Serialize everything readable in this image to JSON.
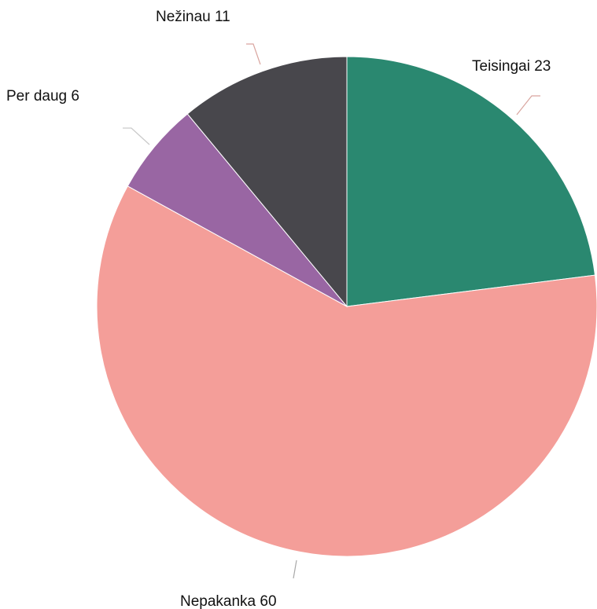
{
  "chart_data": {
    "type": "pie",
    "title": "",
    "start_angle_deg": 0,
    "direction": "clockwise",
    "legend": "none",
    "slices": [
      {
        "label": "Teisingai",
        "value": 23,
        "display": "Teisingai 23",
        "color": "#2a8870",
        "leader_color": "#d9a59f"
      },
      {
        "label": "Nepakanka",
        "value": 60,
        "display": "Nepakanka 60",
        "color": "#f49e99",
        "leader_color": "#a8a8a8"
      },
      {
        "label": "Per daug",
        "value": 6,
        "display": "Per daug 6",
        "color": "#9966a3",
        "leader_color": "#c9c9c9"
      },
      {
        "label": "Nežinau",
        "value": 11,
        "display": "Nežinau 11",
        "color": "#48474c",
        "leader_color": "#d9a59f"
      }
    ]
  }
}
